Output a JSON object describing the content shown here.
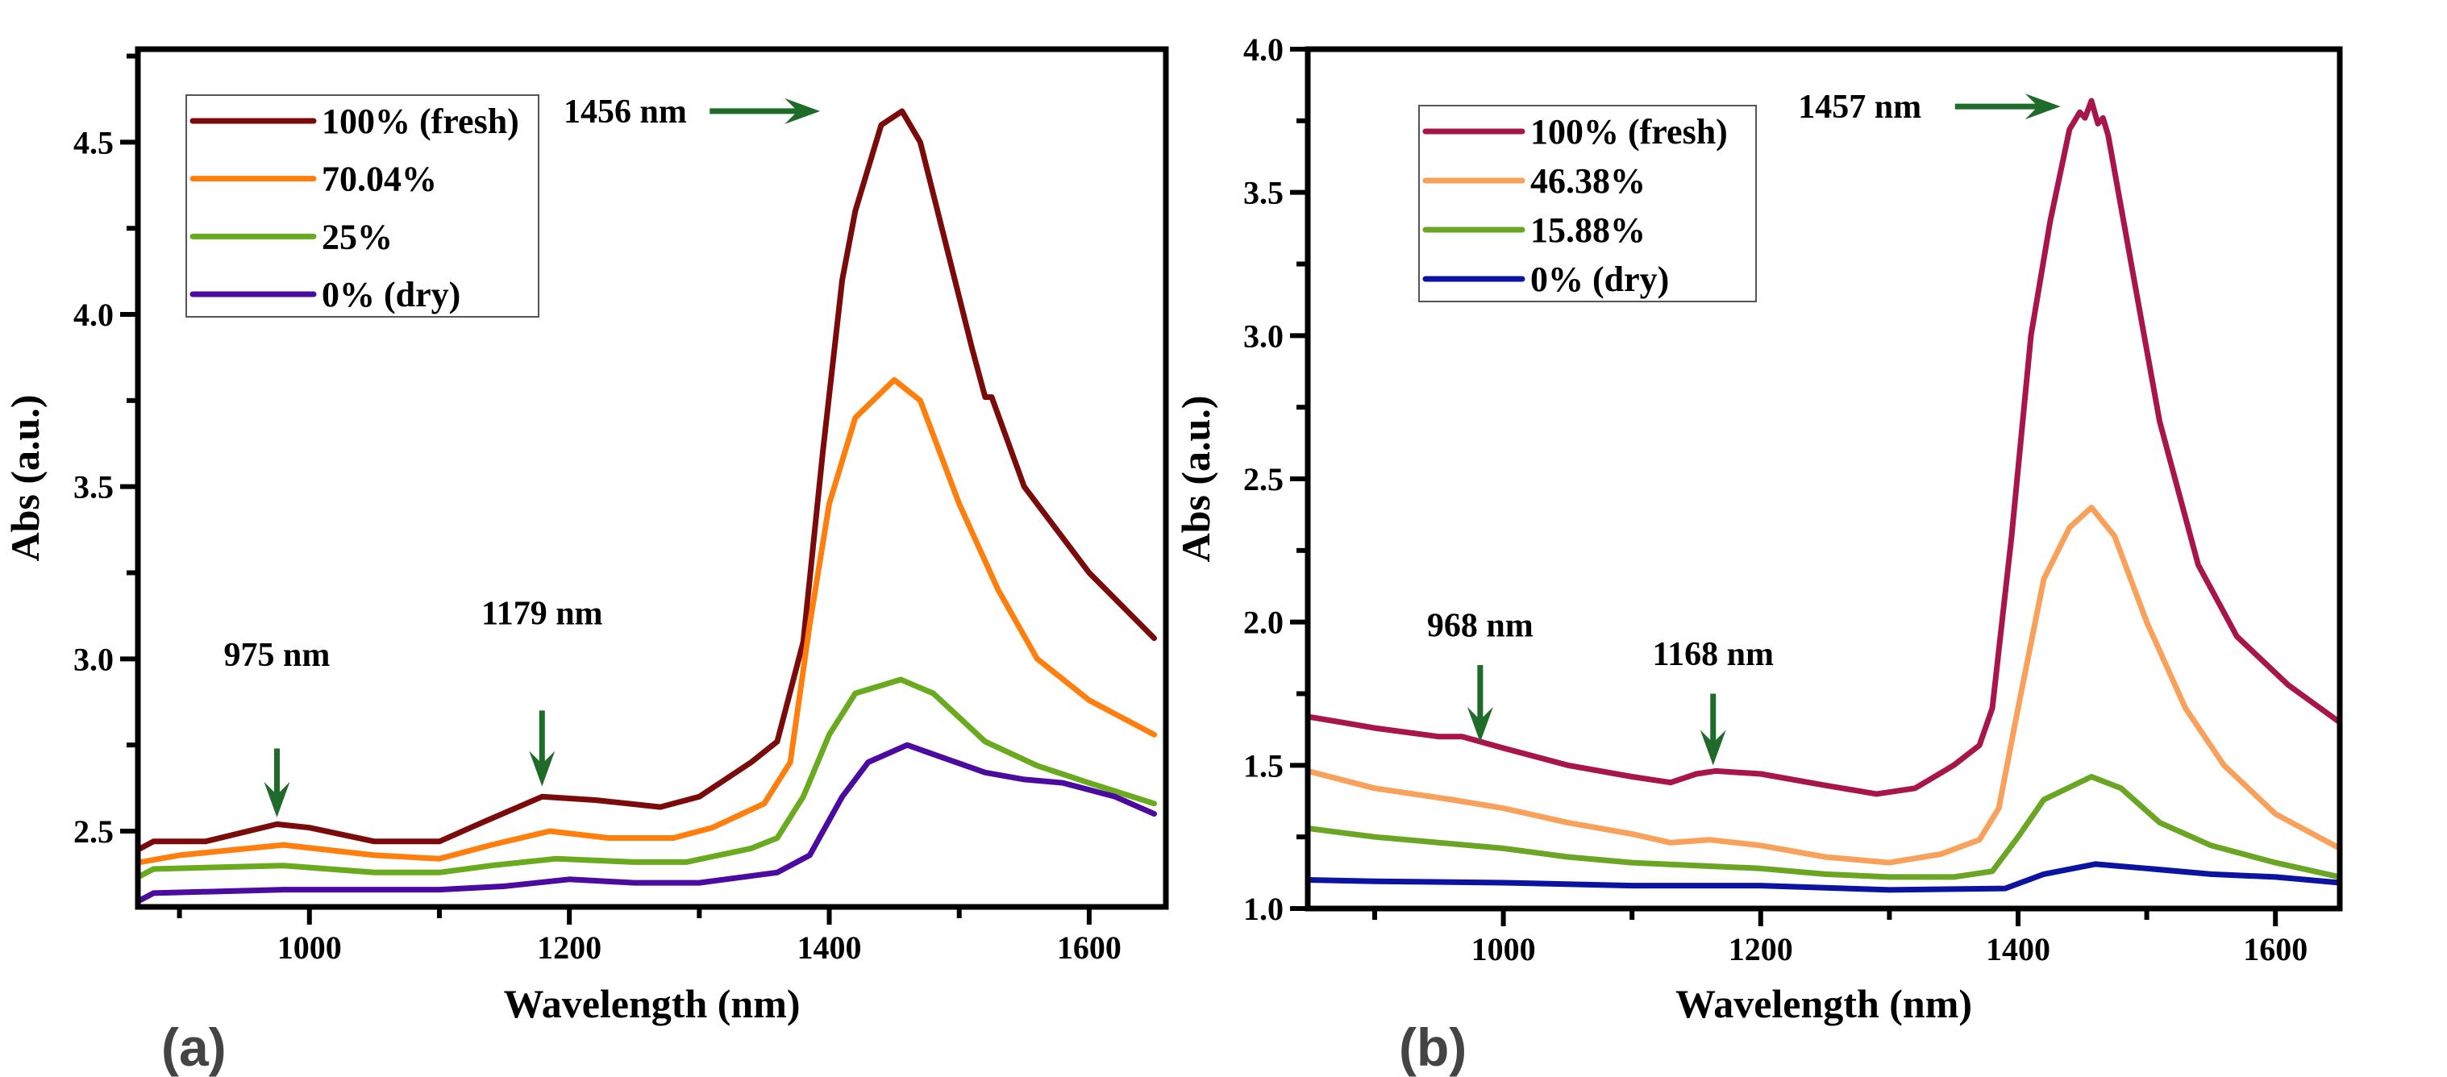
{
  "chart_data": [
    {
      "type": "line",
      "panel_label": "(a)",
      "xlabel": "Wavelength (nm)",
      "ylabel": "Abs (a.u.)",
      "xlim": [
        868,
        1659
      ],
      "ylim": [
        2.28,
        4.77
      ],
      "xticks": [
        1000,
        1200,
        1400,
        1600
      ],
      "xtick_labels": [
        "1000",
        "1200",
        "1400",
        "1600"
      ],
      "yticks": [
        2.5,
        3.0,
        3.5,
        4.0,
        4.5
      ],
      "ytick_labels": [
        "2.5",
        "3.0",
        "3.5",
        "4.0",
        "4.5"
      ],
      "x_minor_step": 100,
      "y_minor_step": 0.25,
      "grid": false,
      "legend_position": "top-left",
      "series": [
        {
          "name": "100% (fresh)",
          "color": "#7b0a0a",
          "x": [
            870,
            880,
            920,
            975,
            1000,
            1050,
            1100,
            1130,
            1179,
            1220,
            1270,
            1300,
            1340,
            1360,
            1380,
            1395,
            1410,
            1420,
            1440,
            1456,
            1470,
            1490,
            1510,
            1520,
            1525,
            1550,
            1600,
            1650
          ],
          "y": [
            2.45,
            2.47,
            2.47,
            2.52,
            2.51,
            2.47,
            2.47,
            2.52,
            2.6,
            2.59,
            2.57,
            2.6,
            2.7,
            2.76,
            3.05,
            3.6,
            4.1,
            4.3,
            4.55,
            4.59,
            4.5,
            4.2,
            3.9,
            3.76,
            3.76,
            3.5,
            3.25,
            3.06
          ]
        },
        {
          "name": "70.04%",
          "color": "#ff7f0e",
          "x": [
            870,
            900,
            980,
            1050,
            1100,
            1140,
            1185,
            1230,
            1280,
            1310,
            1350,
            1370,
            1385,
            1400,
            1420,
            1450,
            1470,
            1500,
            1530,
            1560,
            1600,
            1650
          ],
          "y": [
            2.41,
            2.43,
            2.46,
            2.43,
            2.42,
            2.46,
            2.5,
            2.48,
            2.48,
            2.51,
            2.58,
            2.7,
            3.1,
            3.45,
            3.7,
            3.81,
            3.75,
            3.45,
            3.2,
            3.0,
            2.88,
            2.78
          ]
        },
        {
          "name": "25%",
          "color": "#6aaa1e",
          "x": [
            870,
            880,
            980,
            1050,
            1100,
            1140,
            1190,
            1250,
            1290,
            1340,
            1360,
            1380,
            1400,
            1420,
            1455,
            1480,
            1520,
            1560,
            1600,
            1650
          ],
          "y": [
            2.37,
            2.39,
            2.4,
            2.38,
            2.38,
            2.4,
            2.42,
            2.41,
            2.41,
            2.45,
            2.48,
            2.6,
            2.78,
            2.9,
            2.94,
            2.9,
            2.76,
            2.69,
            2.64,
            2.58
          ]
        },
        {
          "name": "0% (dry)",
          "color": "#4b0aa0",
          "x": [
            870,
            880,
            980,
            1100,
            1150,
            1200,
            1250,
            1300,
            1360,
            1385,
            1410,
            1430,
            1460,
            1490,
            1520,
            1550,
            1580,
            1620,
            1650
          ],
          "y": [
            2.3,
            2.32,
            2.33,
            2.33,
            2.34,
            2.36,
            2.35,
            2.35,
            2.38,
            2.43,
            2.6,
            2.7,
            2.75,
            2.71,
            2.67,
            2.65,
            2.64,
            2.6,
            2.55
          ]
        }
      ],
      "annotations": [
        {
          "text": "975 nm",
          "x": 975,
          "y_text": 2.98,
          "y_tail": 2.74,
          "y_tip": 2.54,
          "dir": "down"
        },
        {
          "text": "1179 nm",
          "x": 1179,
          "y_text": 3.1,
          "y_tail": 2.85,
          "y_tip": 2.63,
          "dir": "down"
        },
        {
          "text": "1456 nm",
          "x_text": 1243,
          "y": 4.59,
          "x_tail": 1308,
          "x_tip": 1393,
          "dir": "right"
        }
      ]
    },
    {
      "type": "line",
      "panel_label": "(b)",
      "xlabel": "Wavelength (nm)",
      "ylabel": "Abs (a.u.)",
      "xlim": [
        848,
        1650
      ],
      "ylim": [
        1.0,
        4.0
      ],
      "xticks": [
        1000,
        1200,
        1400,
        1600
      ],
      "xtick_labels": [
        "1000",
        "1200",
        "1400",
        "1600"
      ],
      "yticks": [
        1.0,
        1.5,
        2.0,
        2.5,
        3.0,
        3.5,
        4.0
      ],
      "ytick_labels": [
        "1.0",
        "1.5",
        "2.0",
        "2.5",
        "3.0",
        "3.5",
        "4.0"
      ],
      "x_minor_step": 100,
      "y_minor_step": 0.25,
      "grid": false,
      "legend_position": "top-left",
      "series": [
        {
          "name": "100% (fresh)",
          "color": "#a8154a",
          "x": [
            848,
            900,
            950,
            968,
            1000,
            1050,
            1100,
            1130,
            1150,
            1165,
            1200,
            1250,
            1290,
            1320,
            1350,
            1370,
            1380,
            1395,
            1410,
            1425,
            1440,
            1448,
            1452,
            1457,
            1462,
            1466,
            1470,
            1490,
            1510,
            1540,
            1570,
            1610,
            1650
          ],
          "y": [
            1.67,
            1.63,
            1.6,
            1.6,
            1.56,
            1.5,
            1.46,
            1.44,
            1.47,
            1.48,
            1.47,
            1.43,
            1.4,
            1.42,
            1.5,
            1.57,
            1.7,
            2.3,
            3.0,
            3.4,
            3.72,
            3.78,
            3.76,
            3.82,
            3.74,
            3.76,
            3.7,
            3.2,
            2.7,
            2.2,
            1.95,
            1.78,
            1.65
          ]
        },
        {
          "name": "46.38%",
          "color": "#f9a15a",
          "x": [
            848,
            900,
            960,
            1000,
            1050,
            1100,
            1130,
            1160,
            1200,
            1250,
            1300,
            1340,
            1370,
            1385,
            1400,
            1420,
            1440,
            1457,
            1475,
            1500,
            1530,
            1560,
            1600,
            1650
          ],
          "y": [
            1.48,
            1.42,
            1.38,
            1.35,
            1.3,
            1.26,
            1.23,
            1.24,
            1.22,
            1.18,
            1.16,
            1.19,
            1.24,
            1.35,
            1.7,
            2.15,
            2.33,
            2.4,
            2.3,
            2.0,
            1.7,
            1.5,
            1.33,
            1.21
          ]
        },
        {
          "name": "15.88%",
          "color": "#6ba524",
          "x": [
            848,
            900,
            950,
            1000,
            1050,
            1100,
            1150,
            1200,
            1250,
            1300,
            1350,
            1380,
            1400,
            1420,
            1457,
            1480,
            1510,
            1550,
            1600,
            1650
          ],
          "y": [
            1.28,
            1.25,
            1.23,
            1.21,
            1.18,
            1.16,
            1.15,
            1.14,
            1.12,
            1.11,
            1.11,
            1.13,
            1.25,
            1.38,
            1.46,
            1.42,
            1.3,
            1.22,
            1.16,
            1.11
          ]
        },
        {
          "name": "0% (dry)",
          "color": "#0b13a0",
          "x": [
            848,
            900,
            1000,
            1100,
            1200,
            1300,
            1390,
            1420,
            1460,
            1500,
            1550,
            1600,
            1650
          ],
          "y": [
            1.1,
            1.095,
            1.09,
            1.08,
            1.08,
            1.065,
            1.07,
            1.12,
            1.155,
            1.14,
            1.12,
            1.11,
            1.09
          ]
        }
      ],
      "annotations": [
        {
          "text": "968 nm",
          "x": 982,
          "y_text": 1.95,
          "y_tail": 1.85,
          "y_tip": 1.58,
          "dir": "down"
        },
        {
          "text": "1168 nm",
          "x": 1163,
          "y_text": 1.85,
          "y_tail": 1.75,
          "y_tip": 1.5,
          "dir": "down"
        },
        {
          "text": "1457 nm",
          "x_text": 1277,
          "y": 3.8,
          "x_tail": 1351,
          "x_tip": 1433,
          "dir": "right"
        }
      ]
    }
  ],
  "colors": {
    "arrow": "#1e6b2a",
    "panel_label": "#444444"
  }
}
